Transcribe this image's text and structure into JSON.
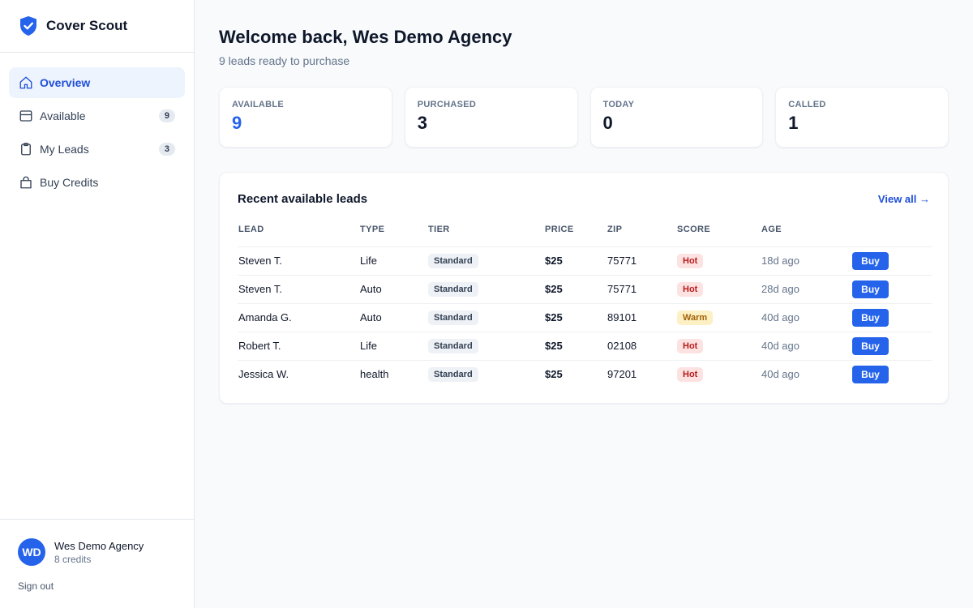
{
  "app": {
    "name": "Cover Scout"
  },
  "colors": {
    "accent": "#2563eb",
    "hot_bg": "#fde2e2",
    "warm_bg": "#fdf0c4"
  },
  "nav": {
    "items": [
      {
        "label": "Overview",
        "icon": "home-icon",
        "badge": null
      },
      {
        "label": "Available",
        "icon": "inbox-icon",
        "badge": "9"
      },
      {
        "label": "My Leads",
        "icon": "clipboard-icon",
        "badge": "3"
      },
      {
        "label": "Buy Credits",
        "icon": "shopping-bag-icon",
        "badge": null
      }
    ]
  },
  "user": {
    "initials": "WD",
    "name": "Wes Demo Agency",
    "credits": "8 credits",
    "sign_out": "Sign out"
  },
  "header": {
    "welcome": "Welcome back, Wes Demo Agency",
    "subtitle": "9 leads ready to purchase"
  },
  "stats": [
    {
      "label": "AVAILABLE",
      "value": "9"
    },
    {
      "label": "PURCHASED",
      "value": "3"
    },
    {
      "label": "TODAY",
      "value": "0"
    },
    {
      "label": "CALLED",
      "value": "1"
    }
  ],
  "leads": {
    "title": "Recent available leads",
    "view_all": "View all →",
    "columns": [
      "LEAD",
      "TYPE",
      "TIER",
      "PRICE",
      "ZIP",
      "SCORE",
      "AGE",
      ""
    ],
    "buy_label": "Buy",
    "rows": [
      {
        "lead": "Steven T.",
        "type": "Life",
        "tier": "Standard",
        "price": "$25",
        "zip": "75771",
        "score": "Hot",
        "age": "18d ago"
      },
      {
        "lead": "Steven T.",
        "type": "Auto",
        "tier": "Standard",
        "price": "$25",
        "zip": "75771",
        "score": "Hot",
        "age": "28d ago"
      },
      {
        "lead": "Amanda G.",
        "type": "Auto",
        "tier": "Standard",
        "price": "$25",
        "zip": "89101",
        "score": "Warm",
        "age": "40d ago"
      },
      {
        "lead": "Robert T.",
        "type": "Life",
        "tier": "Standard",
        "price": "$25",
        "zip": "02108",
        "score": "Hot",
        "age": "40d ago"
      },
      {
        "lead": "Jessica W.",
        "type": "health",
        "tier": "Standard",
        "price": "$25",
        "zip": "97201",
        "score": "Hot",
        "age": "40d ago"
      }
    ]
  }
}
